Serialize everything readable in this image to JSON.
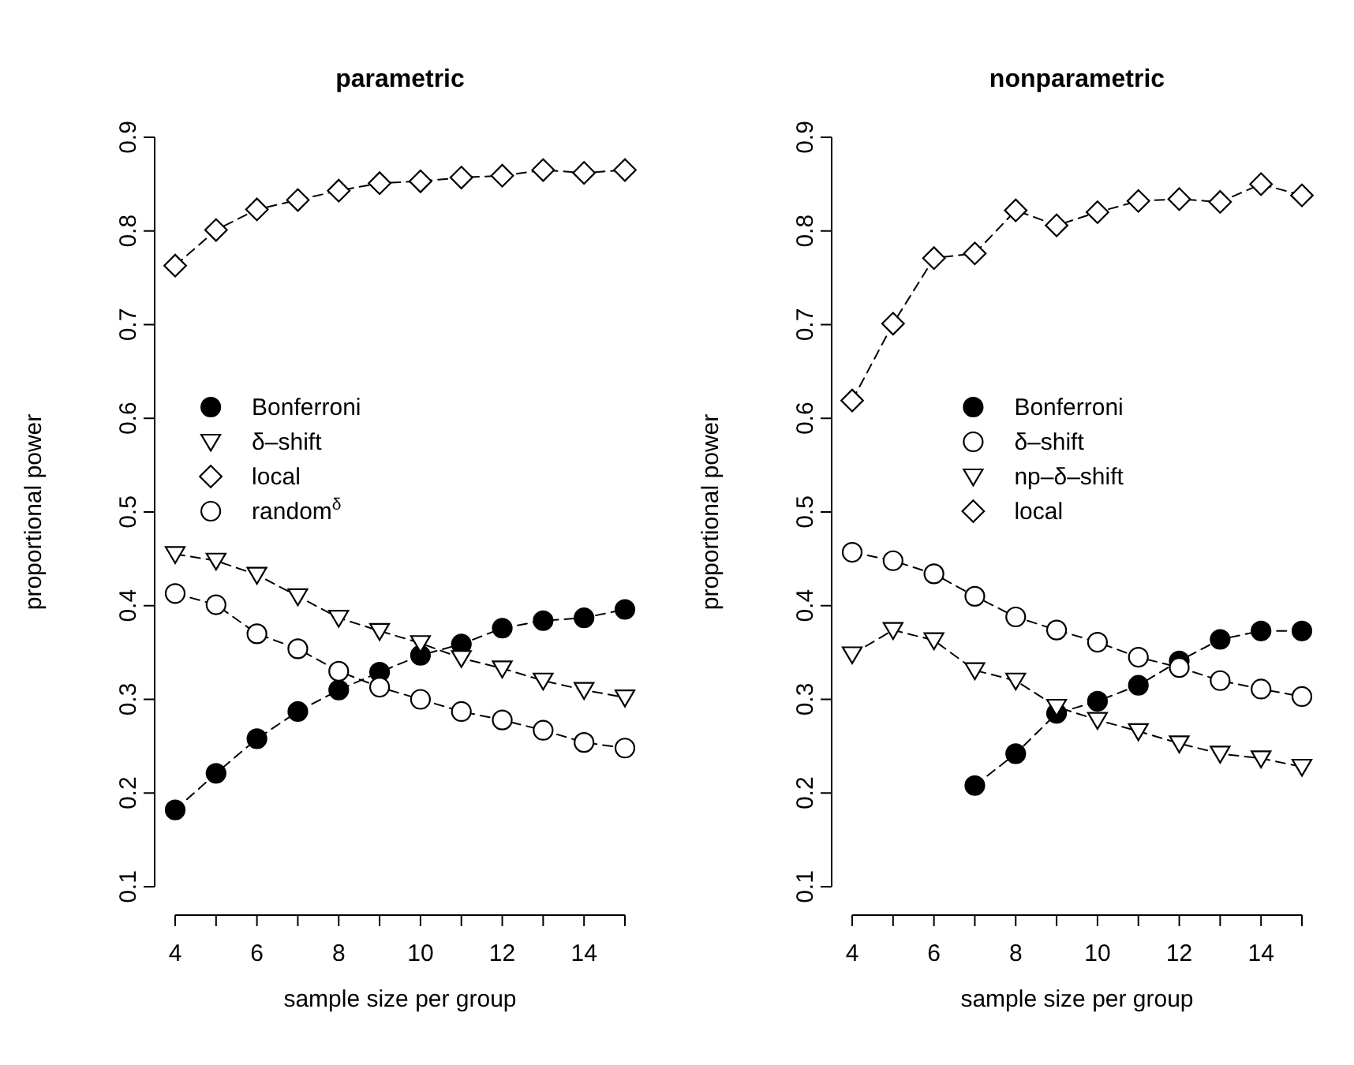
{
  "chart_data": [
    {
      "type": "line",
      "title": "parametric",
      "xlabel": "sample size per group",
      "ylabel": "proportional power",
      "x": [
        4,
        5,
        6,
        7,
        8,
        9,
        10,
        11,
        12,
        13,
        14,
        15
      ],
      "xlim": [
        4,
        15
      ],
      "xticks": [
        4,
        6,
        8,
        10,
        12,
        14
      ],
      "ylim": [
        0.1,
        0.9
      ],
      "yticks": [
        0.1,
        0.2,
        0.3,
        0.4,
        0.5,
        0.6,
        0.7,
        0.8,
        0.9
      ],
      "grid": false,
      "legend": "left",
      "line_style": "dashed",
      "series": [
        {
          "name": "Bonferroni",
          "color": "#000000",
          "marker": "circle",
          "values": [
            0.182,
            0.221,
            0.258,
            0.287,
            0.31,
            0.329,
            0.347,
            0.359,
            0.376,
            0.384,
            0.387,
            0.396
          ]
        },
        {
          "name": "δ–shift",
          "color": "#ffffff",
          "marker": "triangle",
          "values": [
            0.455,
            0.448,
            0.433,
            0.41,
            0.387,
            0.373,
            0.36,
            0.344,
            0.333,
            0.32,
            0.31,
            0.302
          ]
        },
        {
          "name": "local",
          "color": "#ffffff",
          "marker": "diamond",
          "values": [
            0.763,
            0.801,
            0.823,
            0.833,
            0.843,
            0.851,
            0.853,
            0.857,
            0.859,
            0.865,
            0.862,
            0.865
          ]
        },
        {
          "name": "random$^{δ}$",
          "color": "#ffffff",
          "marker": "circle",
          "values": [
            0.413,
            0.401,
            0.37,
            0.354,
            0.33,
            0.313,
            0.3,
            0.287,
            0.278,
            0.267,
            0.254,
            0.248
          ]
        }
      ]
    },
    {
      "type": "line",
      "title": "nonparametric",
      "xlabel": "sample size per group",
      "ylabel": "proportional power",
      "x": [
        4,
        5,
        6,
        7,
        8,
        9,
        10,
        11,
        12,
        13,
        14,
        15
      ],
      "xlim": [
        4,
        15
      ],
      "xticks": [
        4,
        6,
        8,
        10,
        12,
        14
      ],
      "ylim": [
        0.1,
        0.9
      ],
      "yticks": [
        0.1,
        0.2,
        0.3,
        0.4,
        0.5,
        0.6,
        0.7,
        0.8,
        0.9
      ],
      "grid": false,
      "legend": "top",
      "line_style": "dashed",
      "series": [
        {
          "name": "Bonferroni",
          "color": "#000000",
          "marker": "circle",
          "values": [
            null,
            null,
            null,
            0.208,
            0.242,
            0.285,
            0.298,
            0.315,
            0.341,
            0.364,
            0.373,
            0.373
          ]
        },
        {
          "name": "δ–shift",
          "color": "#ffffff",
          "marker": "circle",
          "values": [
            0.457,
            0.448,
            0.434,
            0.41,
            0.388,
            0.374,
            0.361,
            0.345,
            0.334,
            0.32,
            0.311,
            0.303
          ]
        },
        {
          "name": "np–δ–shift",
          "color": "#ffffff",
          "marker": "triangle",
          "values": [
            0.348,
            0.374,
            0.363,
            0.331,
            0.32,
            0.292,
            0.278,
            0.266,
            0.253,
            0.242,
            0.237,
            0.228
          ]
        },
        {
          "name": "local",
          "color": "#ffffff",
          "marker": "diamond",
          "values": [
            0.619,
            0.701,
            0.771,
            0.776,
            0.822,
            0.806,
            0.82,
            0.832,
            0.834,
            0.831,
            0.85,
            0.838
          ]
        }
      ]
    }
  ]
}
